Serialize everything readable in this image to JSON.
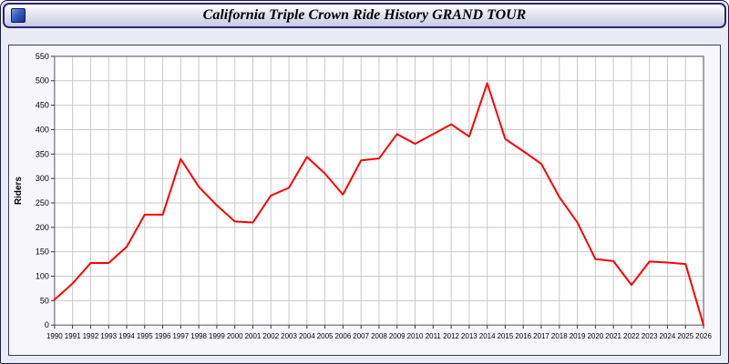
{
  "window": {
    "title": "California Triple Crown Ride History GRAND TOUR"
  },
  "chart_data": {
    "type": "line",
    "title": "California Triple Crown Ride History GRAND TOUR",
    "xlabel": "",
    "ylabel": "Riders",
    "ylim": [
      0,
      550
    ],
    "ytick_interval": 50,
    "grid": true,
    "legend": "none",
    "line_color": "#ff0000",
    "plot_bg": "#ffffff",
    "grid_color": "#c9c9c9",
    "categories": [
      1990,
      1991,
      1992,
      1993,
      1994,
      1995,
      1996,
      1997,
      1998,
      1999,
      2000,
      2001,
      2002,
      2003,
      2004,
      2005,
      2006,
      2007,
      2008,
      2009,
      2010,
      2011,
      2012,
      2013,
      2014,
      2015,
      2016,
      2017,
      2018,
      2019,
      2020,
      2021,
      2022,
      2023,
      2024,
      2025,
      2026
    ],
    "values": [
      52,
      85,
      127,
      127,
      160,
      226,
      226,
      340,
      283,
      245,
      212,
      210,
      265,
      281,
      344,
      310,
      267,
      337,
      341,
      391,
      371,
      391,
      411,
      386,
      495,
      381,
      356,
      330,
      262,
      210,
      135,
      131,
      82,
      130,
      128,
      125,
      0
    ]
  }
}
